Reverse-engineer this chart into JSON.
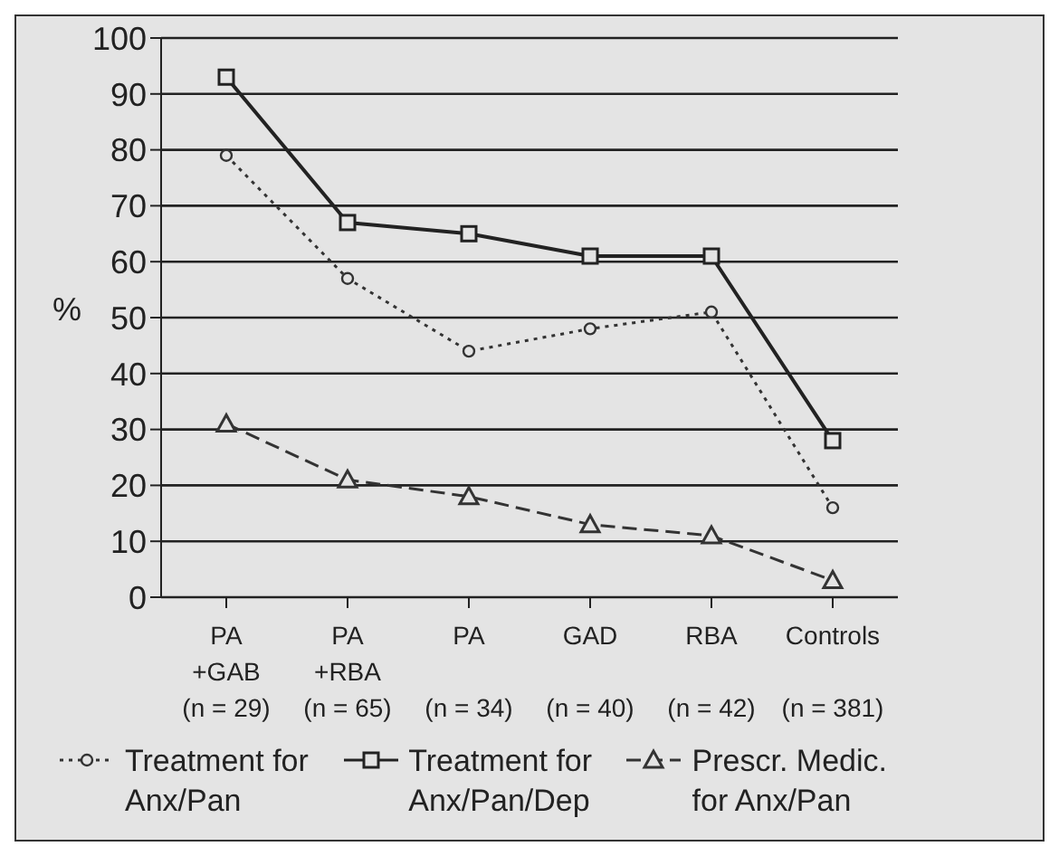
{
  "chart_data": {
    "type": "line",
    "ylabel": "%",
    "categories": [
      "PA\n+GAB\n(n = 29)",
      "PA\n+RBA\n(n = 65)",
      "PA\n\n(n = 34)",
      "GAD\n\n(n = 40)",
      "RBA\n\n(n = 42)",
      "Controls\n\n(n = 381)"
    ],
    "series": [
      {
        "name": "Treatment for\nAnx/Pan",
        "color": "#333333",
        "marker": "circle",
        "line_style": "dotted",
        "values": [
          79,
          57,
          44,
          48,
          51,
          16
        ]
      },
      {
        "name": "Treatment for\nAnx/Pan/Dep",
        "color": "#222222",
        "marker": "square",
        "line_style": "solid",
        "values": [
          93,
          67,
          65,
          61,
          61,
          28
        ]
      },
      {
        "name": "Prescr. Medic.\nfor Anx/Pan",
        "color": "#333333",
        "marker": "triangle",
        "line_style": "dashed",
        "values": [
          31,
          21,
          18,
          13,
          11,
          3
        ]
      }
    ],
    "ylim": [
      0,
      100
    ],
    "yticks": [
      0,
      10,
      20,
      30,
      40,
      50,
      60,
      70,
      80,
      90,
      100
    ],
    "grid": "y",
    "legend": "bottom"
  }
}
